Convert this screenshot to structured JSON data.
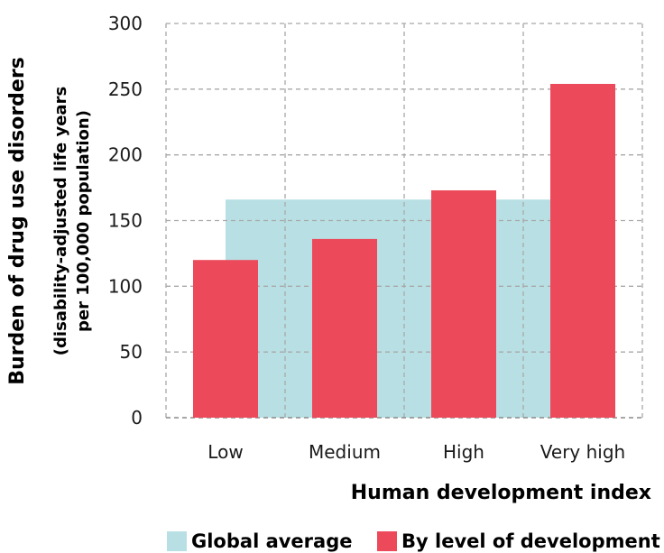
{
  "chart_data": {
    "type": "bar",
    "categories": [
      "Low",
      "Medium",
      "High",
      "Very high"
    ],
    "series": [
      {
        "name": "Global average",
        "values": [
          166,
          166,
          166,
          166
        ],
        "color": "#b8e0e4",
        "style": "background-band"
      },
      {
        "name": "By level of development",
        "values": [
          120,
          136,
          173,
          254
        ],
        "color": "#ec4a5b"
      }
    ],
    "xlabel": "Human development index",
    "ylabel": "Burden of drug use disorders",
    "ylabel_sub": [
      "(disability-adjusted life years",
      "per 100,000 population)"
    ],
    "ylim": [
      0,
      300
    ],
    "yticks": [
      0,
      50,
      100,
      150,
      200,
      250,
      300
    ],
    "grid": true,
    "legend_position": "bottom"
  },
  "legend": {
    "items": [
      {
        "label": "Global average",
        "color": "#b8e0e4"
      },
      {
        "label": "By level of development",
        "color": "#ec4a5b"
      }
    ]
  }
}
